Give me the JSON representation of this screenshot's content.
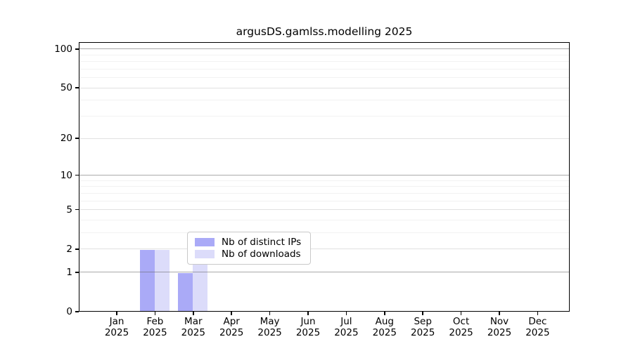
{
  "chart_data": {
    "type": "bar",
    "title": "argusDS.gamlss.modelling 2025",
    "categories": [
      "Jan",
      "Feb",
      "Mar",
      "Apr",
      "May",
      "Jun",
      "Jul",
      "Aug",
      "Sep",
      "Oct",
      "Nov",
      "Dec"
    ],
    "year": "2025",
    "series": [
      {
        "name": "Nb of distinct IPs",
        "color": "#aaaaf7",
        "values": [
          0,
          2,
          1,
          0,
          0,
          0,
          0,
          0,
          0,
          0,
          0,
          0
        ]
      },
      {
        "name": "Nb of downloads",
        "color": "#dcdcfa",
        "values": [
          0,
          2,
          2,
          0,
          0,
          0,
          0,
          0,
          0,
          0,
          0,
          0
        ]
      }
    ],
    "yscale": "log1p",
    "ylim": [
      0,
      113
    ],
    "yticks": [
      0,
      1,
      2,
      5,
      10,
      20,
      50,
      100
    ],
    "major_gridlines": [
      1,
      10,
      100
    ],
    "mid_gridlines": [
      2,
      5,
      20,
      50
    ],
    "minor_gridlines": [
      3,
      4,
      6,
      7,
      8,
      9,
      30,
      40,
      60,
      70,
      80,
      90
    ],
    "grid": "horizontal",
    "legend_position": "inside-bottom-center"
  }
}
